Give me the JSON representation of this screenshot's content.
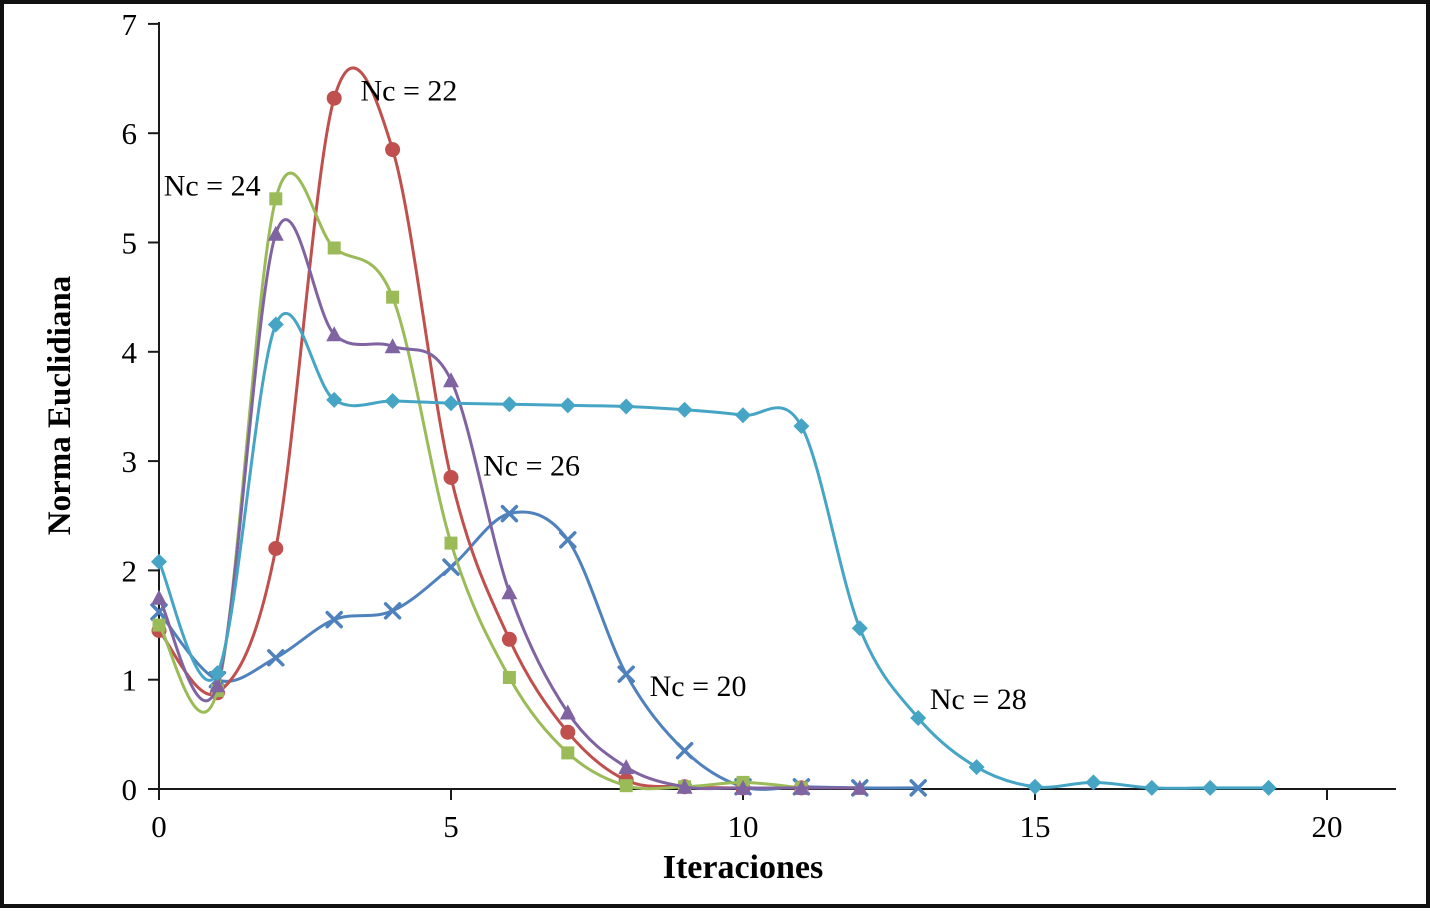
{
  "chart_data": {
    "type": "line",
    "title": "",
    "xlabel": "Iteraciones",
    "ylabel": "Norma Euclidiana",
    "xlim": [
      0,
      21
    ],
    "ylim": [
      0,
      7
    ],
    "x_ticks": [
      0,
      5,
      10,
      15,
      20
    ],
    "y_ticks": [
      0,
      1,
      2,
      3,
      4,
      5,
      6,
      7
    ],
    "grid": false,
    "legend_position": "none",
    "line_style": "smooth",
    "series": [
      {
        "name": "Nc = 20",
        "marker": "x",
        "color": "#4F81BD",
        "x": [
          0,
          1,
          2,
          3,
          4,
          5,
          6,
          7,
          8,
          9,
          10,
          11,
          12,
          13
        ],
        "values": [
          1.62,
          1.0,
          1.2,
          1.55,
          1.63,
          2.03,
          2.52,
          2.28,
          1.05,
          0.35,
          0.02,
          0.02,
          0.01,
          0.01
        ]
      },
      {
        "name": "Nc = 22",
        "marker": "circle",
        "color": "#C0504D",
        "x": [
          0,
          1,
          2,
          3,
          4,
          5,
          6,
          7,
          8,
          9,
          10,
          11
        ],
        "values": [
          1.45,
          0.88,
          2.2,
          6.32,
          5.85,
          2.85,
          1.37,
          0.52,
          0.08,
          0.02,
          0.01,
          0.01
        ]
      },
      {
        "name": "Nc = 24",
        "marker": "square",
        "color": "#9BBB59",
        "x": [
          0,
          1,
          2,
          3,
          4,
          5,
          6,
          7,
          8,
          9,
          10,
          11
        ],
        "values": [
          1.5,
          0.9,
          5.4,
          4.95,
          4.5,
          2.25,
          1.02,
          0.33,
          0.03,
          0.02,
          0.06,
          0.01
        ]
      },
      {
        "name": "Nc = 26",
        "marker": "triangle",
        "color": "#8064A2",
        "x": [
          0,
          1,
          2,
          3,
          4,
          5,
          6,
          7,
          8,
          9,
          10,
          11,
          12
        ],
        "values": [
          1.75,
          0.95,
          5.08,
          4.16,
          4.05,
          3.74,
          1.8,
          0.7,
          0.2,
          0.02,
          0.01,
          0.01,
          0.01
        ]
      },
      {
        "name": "Nc = 28",
        "marker": "diamond",
        "color": "#46A5C5",
        "x": [
          0,
          1,
          2,
          3,
          4,
          5,
          6,
          7,
          8,
          9,
          10,
          11,
          12,
          13,
          14,
          15,
          16,
          17,
          18,
          19
        ],
        "values": [
          2.08,
          1.06,
          4.25,
          3.56,
          3.55,
          3.53,
          3.52,
          3.51,
          3.5,
          3.47,
          3.42,
          3.32,
          1.47,
          0.65,
          0.2,
          0.02,
          0.06,
          0.01,
          0.01,
          0.01
        ]
      }
    ],
    "annotations": [
      {
        "text": "Nc = 22",
        "x": 3.45,
        "y": 6.3
      },
      {
        "text": "Nc = 24",
        "x": 0.08,
        "y": 5.43
      },
      {
        "text": "Nc = 26",
        "x": 5.55,
        "y": 2.87
      },
      {
        "text": "Nc = 20",
        "x": 8.4,
        "y": 0.85
      },
      {
        "text": "Nc = 28",
        "x": 13.2,
        "y": 0.73
      }
    ]
  }
}
